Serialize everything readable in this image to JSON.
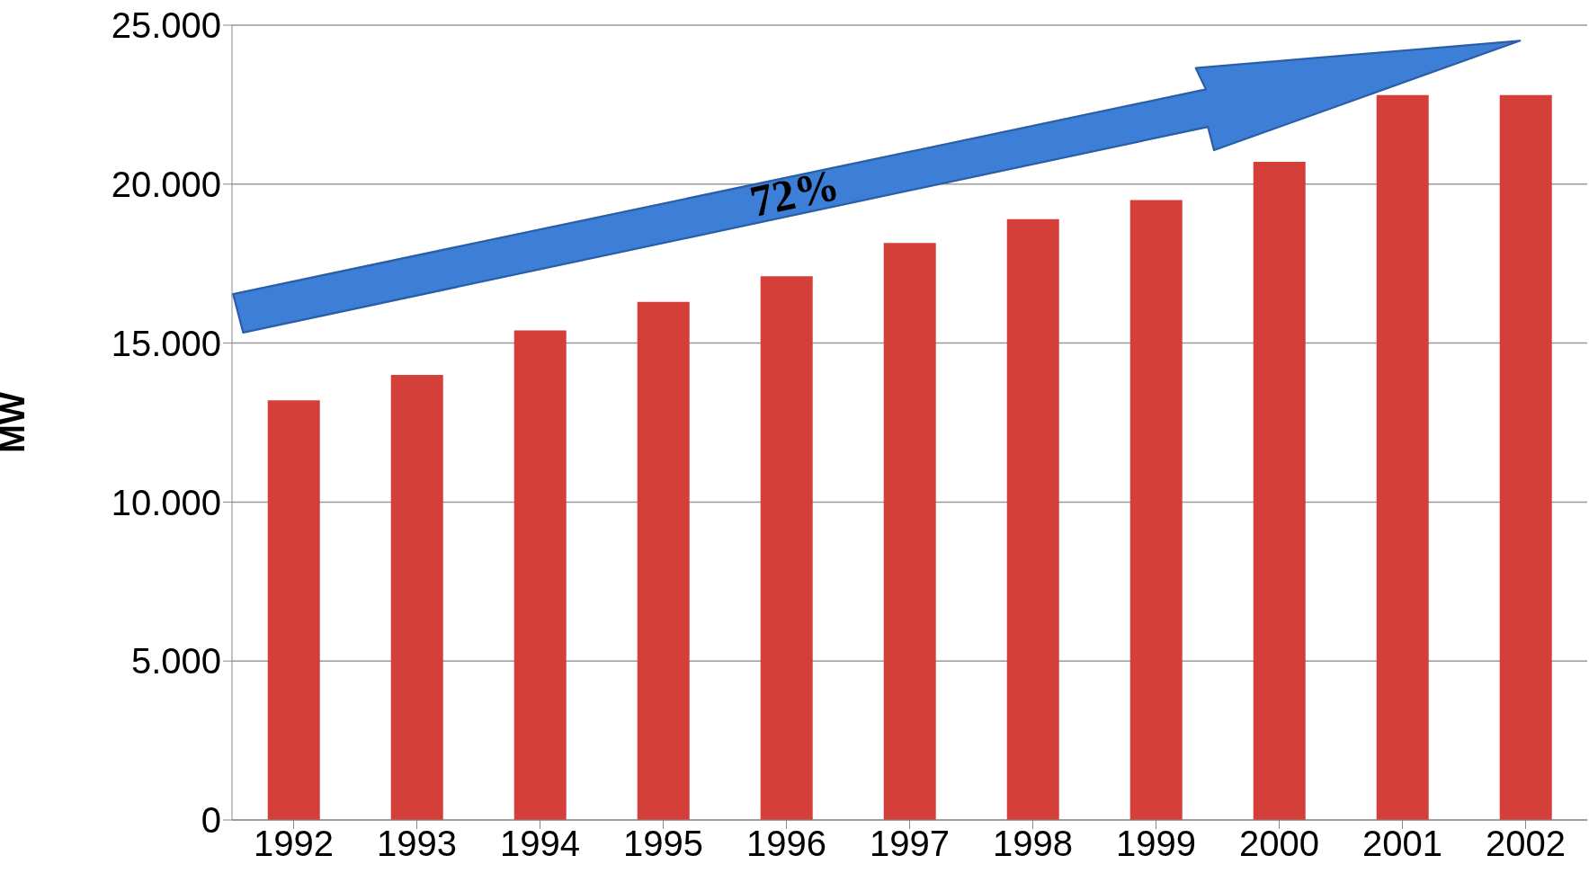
{
  "chart_data": {
    "type": "bar",
    "ylabel": "MW",
    "categories": [
      "1992",
      "1993",
      "1994",
      "1995",
      "1996",
      "1997",
      "1998",
      "1999",
      "2000",
      "2001",
      "2002"
    ],
    "values": [
      13200,
      14000,
      15400,
      16300,
      17100,
      18150,
      18900,
      19500,
      20700,
      22800,
      22800
    ],
    "color": "#d43f3a",
    "ylim": [
      0,
      25000
    ],
    "yticks": [
      {
        "value": 0,
        "label": "0"
      },
      {
        "value": 5000,
        "label": "5.000"
      },
      {
        "value": 10000,
        "label": "10.000"
      },
      {
        "value": 15000,
        "label": "15.000"
      },
      {
        "value": 20000,
        "label": "20.000"
      },
      {
        "value": 25000,
        "label": "25.000"
      }
    ],
    "grid": "y",
    "annotations": [
      "72%"
    ]
  }
}
